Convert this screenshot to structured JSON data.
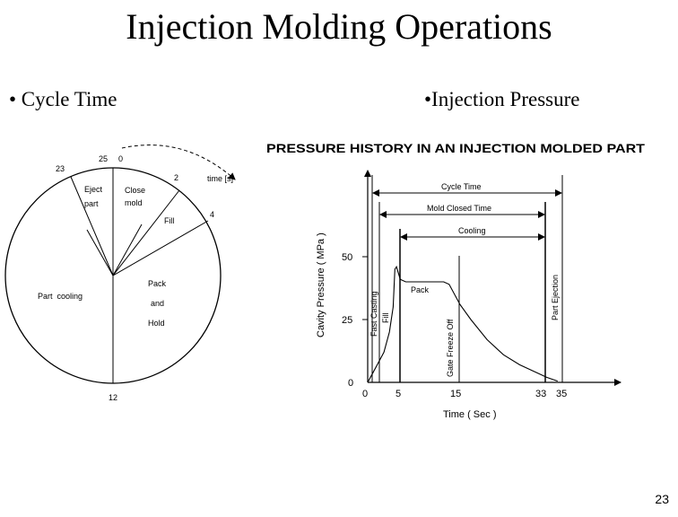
{
  "slide": {
    "title": "Injection Molding Operations",
    "bullet_left": "• Cycle Time",
    "bullet_right": "•Injection Pressure",
    "page_number": "23"
  },
  "cycle_diagram": {
    "tick_labels": [
      "25",
      "0",
      "2",
      "4",
      "12",
      "23"
    ],
    "time_label": "time [s]",
    "segment_labels": {
      "eject_1": "Eject",
      "eject_2": "part",
      "close_1": "Close",
      "close_2": "mold",
      "fill": "Fill",
      "pack_1": "Pack",
      "pack_2": "and",
      "pack_3": "Hold",
      "cooling": "Part  cooling"
    }
  },
  "pressure_chart": {
    "title": "PRESSURE HISTORY IN AN INJECTION MOLDED PART",
    "ylabel": "Cavity Pressure ( MPa )",
    "xlabel": "Time ( Sec )",
    "y_ticks": [
      "50",
      "25",
      "0"
    ],
    "x_ticks": [
      "0",
      "5",
      "15",
      "33",
      "35"
    ],
    "spans": {
      "cycle_time": "Cycle Time",
      "mold_closed_time": "Mold Closed Time",
      "cooling": "Cooling"
    },
    "annotations": {
      "fast_casting": "Fast Casting",
      "fill": "Fill",
      "pack": "Pack",
      "gate_freeze_off": "Gate Freeze Off",
      "part_ejection": "Part Ejection"
    }
  },
  "chart_data": {
    "type": "line",
    "title": "PRESSURE HISTORY IN AN INJECTION MOLDED PART",
    "xlabel": "Time ( Sec )",
    "ylabel": "Cavity Pressure ( MPa )",
    "xlim": [
      0,
      36
    ],
    "ylim": [
      0,
      55
    ],
    "x_ticks": [
      0,
      5,
      15,
      33,
      35
    ],
    "y_ticks": [
      0,
      25,
      50
    ],
    "series": [
      {
        "values_xy": [
          [
            0,
            0
          ],
          [
            1,
            4
          ],
          [
            2,
            8
          ],
          [
            3,
            12
          ],
          [
            4,
            20
          ],
          [
            4.7,
            30
          ],
          [
            5,
            45
          ],
          [
            5.3,
            46
          ],
          [
            6,
            41
          ],
          [
            7,
            40
          ],
          [
            10,
            40
          ],
          [
            14,
            40
          ],
          [
            15,
            39
          ],
          [
            17,
            31
          ],
          [
            19,
            25
          ],
          [
            22,
            17
          ],
          [
            25,
            11
          ],
          [
            28,
            7
          ],
          [
            31,
            4
          ],
          [
            33,
            2
          ],
          [
            35,
            0.5
          ]
        ]
      }
    ]
  }
}
